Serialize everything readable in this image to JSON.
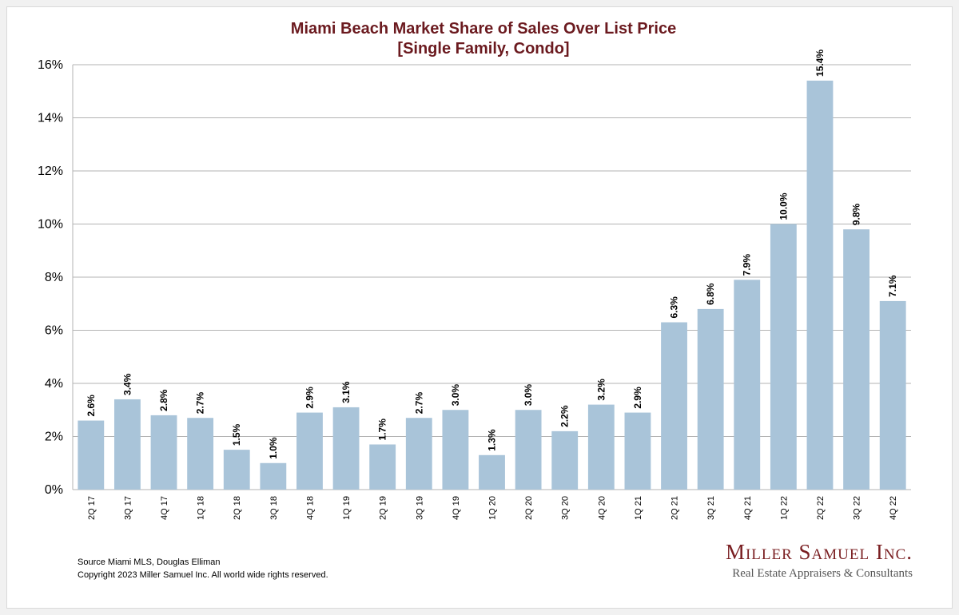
{
  "chart_data": {
    "type": "bar",
    "title": "Miami Beach Market Share of Sales Over List Price",
    "subtitle": "[Single Family, Condo]",
    "categories": [
      "2Q 17",
      "3Q 17",
      "4Q 17",
      "1Q 18",
      "2Q 18",
      "3Q 18",
      "4Q 18",
      "1Q 19",
      "2Q 19",
      "3Q 19",
      "4Q 19",
      "1Q 20",
      "2Q 20",
      "3Q 20",
      "4Q 20",
      "1Q 21",
      "2Q 21",
      "3Q 21",
      "4Q 21",
      "1Q 22",
      "2Q 22",
      "3Q 22",
      "4Q 22"
    ],
    "values": [
      2.6,
      3.4,
      2.8,
      2.7,
      1.5,
      1.0,
      2.9,
      3.1,
      1.7,
      2.7,
      3.0,
      1.3,
      3.0,
      2.2,
      3.2,
      2.9,
      6.3,
      6.8,
      7.9,
      10.0,
      15.4,
      9.8,
      7.1
    ],
    "data_labels": [
      "2.6%",
      "3.4%",
      "2.8%",
      "2.7%",
      "1.5%",
      "1.0%",
      "2.9%",
      "3.1%",
      "1.7%",
      "2.7%",
      "3.0%",
      "1.3%",
      "3.0%",
      "2.2%",
      "3.2%",
      "2.9%",
      "6.3%",
      "6.8%",
      "7.9%",
      "10.0%",
      "15.4%",
      "9.8%",
      "7.1%"
    ],
    "yticks": [
      0,
      2,
      4,
      6,
      8,
      10,
      12,
      14,
      16
    ],
    "ytick_labels": [
      "0%",
      "2%",
      "4%",
      "6%",
      "8%",
      "10%",
      "12%",
      "14%",
      "16%"
    ],
    "ylim": [
      0,
      16
    ],
    "xlabel": "",
    "ylabel": "",
    "grid": true,
    "bar_color": "#a9c4d9",
    "grid_color": "#b3b3b3"
  },
  "footer": {
    "source": "Source Miami MLS, Douglas Elliman",
    "copyright": "Copyright 2023 Miller Samuel Inc.  All world wide rights reserved."
  },
  "logo": {
    "name": "Miller Samuel Inc.",
    "tagline": "Real Estate Appraisers & Consultants"
  },
  "colors": {
    "title": "#6b1a1f",
    "logo": "#7a1f22"
  }
}
